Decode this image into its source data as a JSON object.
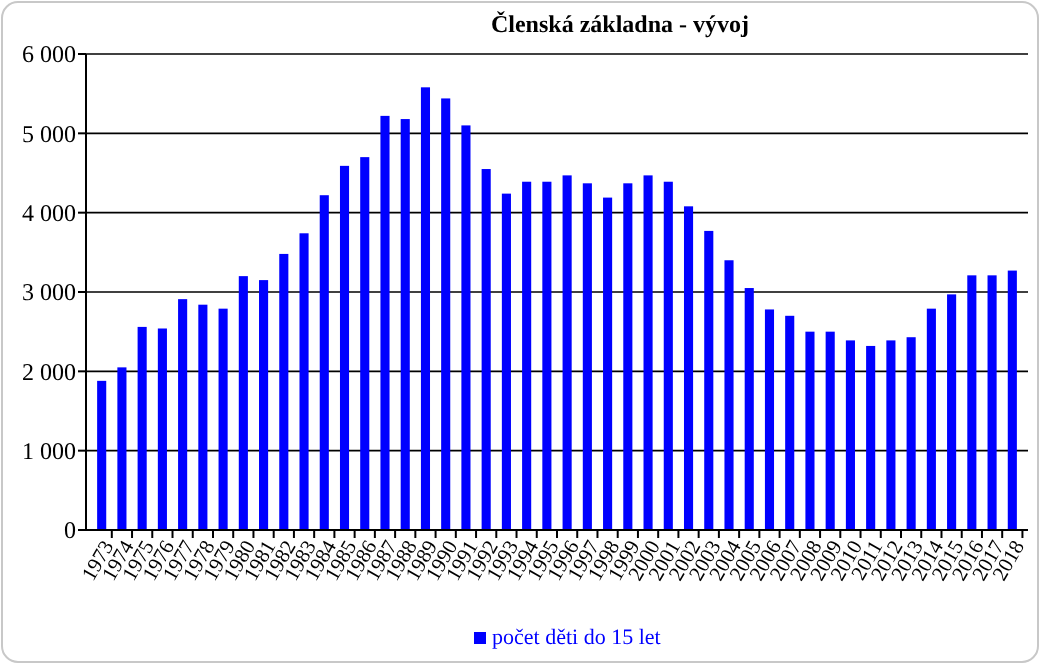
{
  "chart_data": {
    "type": "bar",
    "title": "Členská základna  - vývoj",
    "categories": [
      "1973",
      "1974",
      "1975",
      "1976",
      "1977",
      "1978",
      "1979",
      "1980",
      "1981",
      "1982",
      "1983",
      "1984",
      "1985",
      "1986",
      "1987",
      "1988",
      "1989",
      "1990",
      "1991",
      "1992",
      "1993",
      "1994",
      "1995",
      "1996",
      "1997",
      "1998",
      "1999",
      "2000",
      "2001",
      "2002",
      "2003",
      "2004",
      "2005",
      "2006",
      "2007",
      "2008",
      "2009",
      "2010",
      "2011",
      "2012",
      "2013",
      "2014",
      "2015",
      "2016",
      "2017",
      "2018"
    ],
    "series": [
      {
        "name": "počet děti do 15 let",
        "color": "#0000ff",
        "values": [
          1880,
          2050,
          2560,
          2540,
          2910,
          2840,
          2790,
          3200,
          3150,
          3480,
          3740,
          4220,
          4590,
          4700,
          5220,
          5180,
          5580,
          5440,
          5100,
          4550,
          4240,
          4390,
          4390,
          4470,
          4370,
          4190,
          4370,
          4470,
          4390,
          4080,
          3770,
          3400,
          3050,
          2780,
          2700,
          2500,
          2500,
          2390,
          2320,
          2390,
          2430,
          2790,
          2970,
          3210,
          3210,
          3270
        ]
      }
    ],
    "ylim": [
      0,
      6000
    ],
    "yticks": [
      0,
      {
        "value": 1000,
        "label": "1 000"
      },
      {
        "value": 2000,
        "label": "2 000"
      },
      {
        "value": 3000,
        "label": "3 000"
      },
      {
        "value": 4000,
        "label": "4 000"
      },
      {
        "value": 5000,
        "label": "5 000"
      },
      {
        "value": 6000,
        "label": "6 000"
      }
    ],
    "grid": "y",
    "legend": "bottom"
  }
}
